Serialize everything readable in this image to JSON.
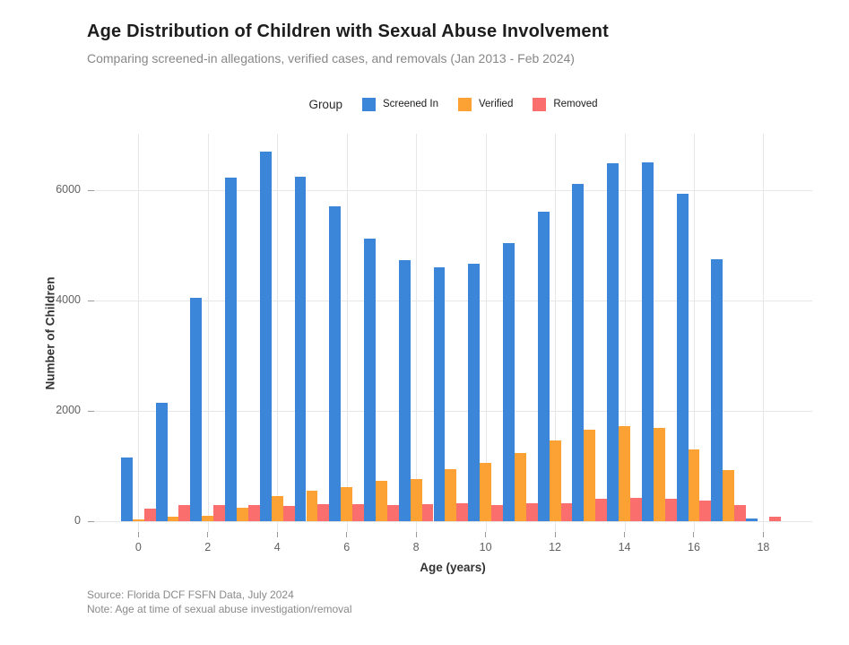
{
  "header": {
    "title": "Age Distribution of Children with Sexual Abuse Involvement",
    "subtitle": "Comparing screened-in allegations, verified cases, and removals (Jan 2013 - Feb 2024)"
  },
  "chart_data": {
    "type": "bar",
    "mode": "grouped",
    "title": "Age Distribution of Children with Sexual Abuse Involvement",
    "subtitle": "Comparing screened-in allegations, verified cases, and removals (Jan 2013 - Feb 2024)",
    "legend_title": "Group",
    "legend_position": "top-center",
    "grid": true,
    "xlabel": "Age (years)",
    "ylabel": "Number of Children",
    "categories": [
      0,
      1,
      2,
      3,
      4,
      5,
      6,
      7,
      8,
      9,
      10,
      11,
      12,
      13,
      14,
      15,
      16,
      17,
      18
    ],
    "xticks": [
      0,
      2,
      4,
      6,
      8,
      10,
      12,
      14,
      16,
      18
    ],
    "yticks": [
      0,
      2000,
      4000,
      6000
    ],
    "ylim": [
      0,
      7000
    ],
    "series": [
      {
        "name": "Screened In",
        "color": "#3b86d8",
        "values": [
          1150,
          2140,
          4050,
          6220,
          6700,
          6250,
          5700,
          5130,
          4740,
          4610,
          4670,
          5040,
          5610,
          6120,
          6490,
          6510,
          5940,
          4750,
          50
        ]
      },
      {
        "name": "Verified",
        "color": "#fca133",
        "values": [
          30,
          75,
          105,
          250,
          450,
          545,
          620,
          740,
          770,
          945,
          1060,
          1230,
          1470,
          1660,
          1730,
          1690,
          1295,
          930,
          0
        ]
      },
      {
        "name": "Removed",
        "color": "#fa6e6e",
        "values": [
          230,
          290,
          300,
          290,
          270,
          310,
          315,
          285,
          310,
          320,
          295,
          320,
          330,
          400,
          415,
          410,
          375,
          285,
          80
        ]
      }
    ]
  },
  "footer": {
    "source": "Source: Florida DCF FSFN Data, July 2024",
    "note": "Note: Age at time of sexual abuse investigation/removal"
  }
}
